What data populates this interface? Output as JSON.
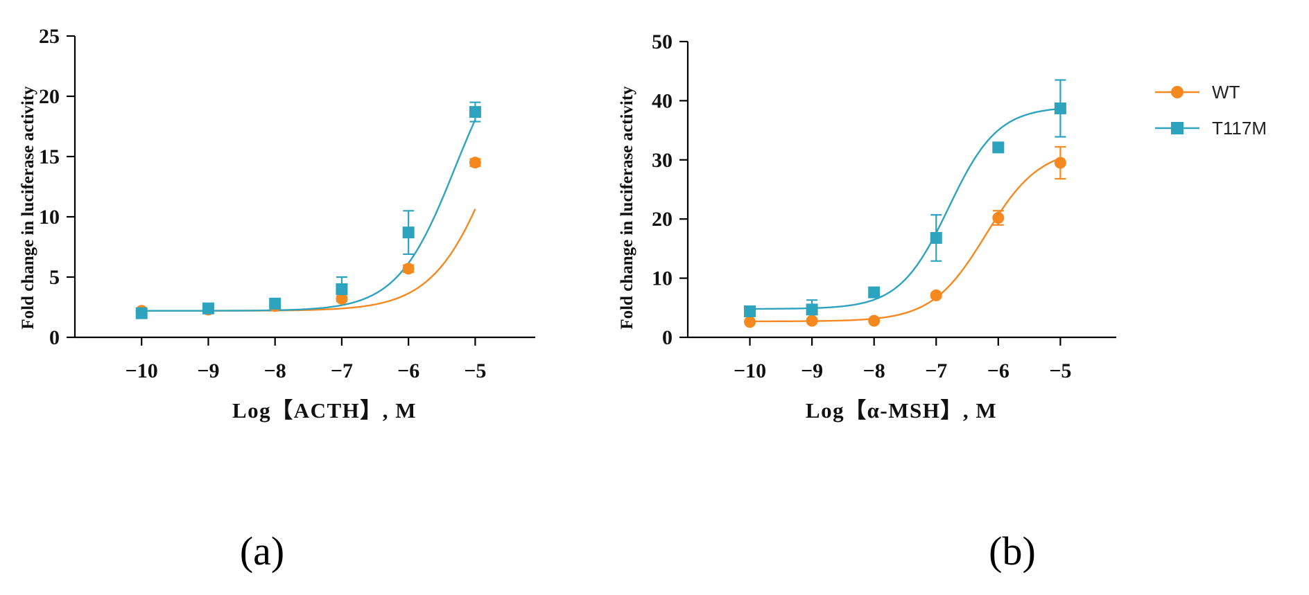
{
  "colors": {
    "WT": "#f5891f",
    "T117M": "#2ea3bd",
    "axis": "#000000"
  },
  "legend": [
    {
      "name": "WT",
      "marker": "circle"
    },
    {
      "name": "T117M",
      "marker": "square"
    }
  ],
  "panel_labels": [
    "(a)",
    "(b)"
  ],
  "chart_data": [
    {
      "type": "scatter",
      "panel": "(a)",
      "title": "",
      "xlabel": "Log【ACTH】, M",
      "ylabel": "Fold change in luciferase activity",
      "xlim": [
        -11,
        -4.1
      ],
      "ylim": [
        0,
        25
      ],
      "xticks": [
        -10,
        -9,
        -8,
        -7,
        -6,
        -5
      ],
      "xtick_labels": [
        "−10",
        "−9",
        "−8",
        "−7",
        "−6",
        "−5"
      ],
      "yticks": [
        0,
        5,
        10,
        15,
        20,
        25
      ],
      "ytick_labels": [
        "0",
        "5",
        "10",
        "15",
        "20",
        "25"
      ],
      "series": [
        {
          "name": "WT",
          "marker": "circle",
          "x": [
            -10,
            -9,
            -8,
            -7,
            -6,
            -5
          ],
          "y": [
            2.2,
            2.3,
            2.6,
            3.2,
            5.7,
            14.5
          ],
          "err": [
            0.1,
            0.1,
            0.15,
            0.2,
            0.3,
            0.3
          ],
          "fit": {
            "bottom": 2.2,
            "top": 30,
            "logec50": -4.6,
            "hill": 0.9
          }
        },
        {
          "name": "T117M",
          "marker": "square",
          "x": [
            -10,
            -9,
            -8,
            -7,
            -6,
            -5
          ],
          "y": [
            2.0,
            2.4,
            2.8,
            4.0,
            8.7,
            18.7
          ],
          "err": [
            0.2,
            0.2,
            0.3,
            1.0,
            1.8,
            0.8
          ],
          "fit": {
            "bottom": 2.2,
            "top": 26,
            "logec50": -5.3,
            "hill": 1.0
          }
        }
      ]
    },
    {
      "type": "scatter",
      "panel": "(b)",
      "title": "",
      "xlabel": "Log【α-MSH】, M",
      "ylabel": "Fold change in luciferase activity",
      "xlim": [
        -11,
        -4.1
      ],
      "ylim": [
        0,
        50
      ],
      "xticks": [
        -10,
        -9,
        -8,
        -7,
        -6,
        -5
      ],
      "xtick_labels": [
        "−10",
        "−9",
        "−8",
        "−7",
        "−6",
        "−5"
      ],
      "yticks": [
        0,
        10,
        20,
        30,
        40,
        50
      ],
      "ytick_labels": [
        "0",
        "10",
        "20",
        "30",
        "40",
        "50"
      ],
      "series": [
        {
          "name": "WT",
          "marker": "circle",
          "x": [
            -10,
            -9,
            -8,
            -7,
            -6,
            -5
          ],
          "y": [
            2.6,
            2.8,
            2.8,
            7.1,
            20.2,
            29.5
          ],
          "err": [
            0.2,
            0.2,
            0.2,
            0.4,
            1.2,
            2.7
          ],
          "fit": {
            "bottom": 2.7,
            "top": 32,
            "logec50": -6.2,
            "hill": 1.0
          }
        },
        {
          "name": "T117M",
          "marker": "square",
          "x": [
            -10,
            -9,
            -8,
            -7,
            -6,
            -5
          ],
          "y": [
            4.4,
            4.7,
            7.6,
            16.8,
            32.1,
            38.7
          ],
          "err": [
            0.3,
            1.6,
            0.6,
            3.9,
            0.6,
            4.8
          ],
          "fit": {
            "bottom": 4.8,
            "top": 39,
            "logec50": -6.8,
            "hill": 1.1
          }
        }
      ]
    }
  ]
}
